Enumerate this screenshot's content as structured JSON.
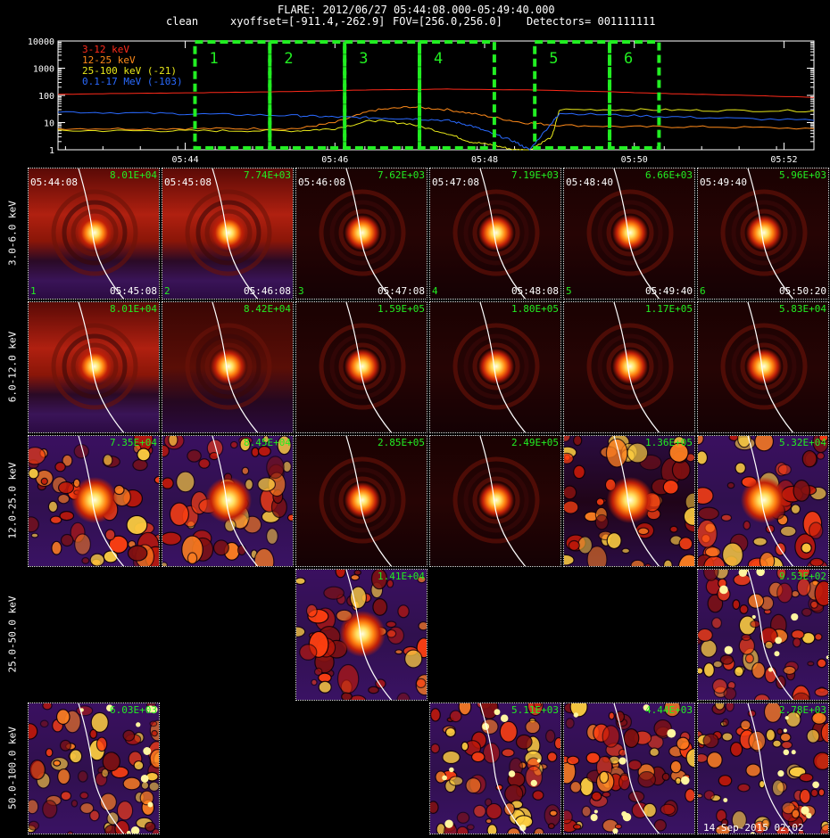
{
  "header": {
    "line1": "FLARE: 2012/06/27 05:44:08.000-05:49:40.000",
    "line2_method": "clean",
    "line2_offset": "xyoffset=[-911.4,-262.9]",
    "line2_fov": "FOV=[256.0,256.0]",
    "line2_detectors": "Detectors= 001111111"
  },
  "chart_data": {
    "type": "line",
    "y_scale": "log",
    "ylim": [
      1,
      10000
    ],
    "y_ticks": [
      "10000",
      "1000",
      "100",
      "10",
      "1"
    ],
    "x_ticks": [
      "05:44",
      "05:46",
      "05:48",
      "05:50",
      "05:52"
    ],
    "xlim_minutes": [
      42.3,
      52.4
    ],
    "legend_placement": "top-left",
    "series": [
      {
        "name": "3-12 keV",
        "color": "#ff2a1a",
        "x": [
          42.3,
          43.5,
          44.5,
          45.5,
          46.5,
          47.5,
          48.5,
          49.5,
          50.5,
          51.5,
          52.4
        ],
        "values": [
          110,
          120,
          128,
          140,
          160,
          170,
          160,
          140,
          115,
          100,
          85
        ]
      },
      {
        "name": "12-25 keV",
        "color": "#ff8a1a",
        "x": [
          42.3,
          43.5,
          44.5,
          45.5,
          46.0,
          46.5,
          47.0,
          47.5,
          48.0,
          48.5,
          49.0,
          50.0,
          51.0,
          52.4
        ],
        "values": [
          6,
          6,
          6,
          6,
          10,
          28,
          38,
          30,
          18,
          10,
          8,
          7,
          7,
          6
        ]
      },
      {
        "name": "25-100 keV (-21)",
        "color": "#e8e81a",
        "x": [
          42.3,
          43.5,
          44.5,
          45.5,
          46.0,
          46.5,
          47.0,
          47.5,
          47.8,
          48.1,
          48.4,
          48.6,
          48.9,
          49.0,
          50.0,
          51.0,
          52.4
        ],
        "values": [
          5,
          5,
          5,
          5,
          6,
          12,
          9,
          4,
          2,
          1.5,
          1,
          1,
          3,
          30,
          30,
          28,
          27
        ]
      },
      {
        "name": "0.1-17 MeV (-103)",
        "color": "#2a6aff",
        "x": [
          42.3,
          43.5,
          44.5,
          45.5,
          46.0,
          46.5,
          47.0,
          47.5,
          47.8,
          48.1,
          48.4,
          48.6,
          48.9,
          49.0,
          50.0,
          51.0,
          52.4
        ],
        "values": [
          25,
          22,
          20,
          18,
          16,
          15,
          14,
          12,
          8,
          4,
          2,
          1,
          10,
          22,
          18,
          15,
          12
        ]
      }
    ],
    "intervals": [
      {
        "label": "1",
        "start": 44.13,
        "end": 45.13
      },
      {
        "label": "2",
        "start": 45.13,
        "end": 46.13
      },
      {
        "label": "3",
        "start": 46.13,
        "end": 47.13
      },
      {
        "label": "4",
        "start": 47.13,
        "end": 48.13
      },
      {
        "label": "5",
        "start": 48.67,
        "end": 49.67
      },
      {
        "label": "6",
        "start": 49.67,
        "end": 50.33
      }
    ]
  },
  "rows": [
    {
      "label": "3.0-6.0 keV"
    },
    {
      "label": "6.0-12.0 keV"
    },
    {
      "label": "12.0-25.0 keV"
    },
    {
      "label": "25.0-50.0 keV"
    },
    {
      "label": "50.0-100.0 keV"
    }
  ],
  "panels": [
    {
      "row": 0,
      "col": 0,
      "max": "8.01E+04",
      "t_start": "05:44:08",
      "t_end": "05:45:08",
      "idx": "1",
      "type": "smooth",
      "bg": "band"
    },
    {
      "row": 0,
      "col": 1,
      "max": "7.74E+03",
      "t_start": "05:45:08",
      "t_end": "05:46:08",
      "idx": "2",
      "type": "smooth",
      "bg": "band"
    },
    {
      "row": 0,
      "col": 2,
      "max": "7.62E+03",
      "t_start": "05:46:08",
      "t_end": "05:47:08",
      "idx": "3",
      "type": "smooth",
      "bg": "dark"
    },
    {
      "row": 0,
      "col": 3,
      "max": "7.19E+03",
      "t_start": "05:47:08",
      "t_end": "05:48:08",
      "idx": "4",
      "type": "smooth",
      "bg": "dark"
    },
    {
      "row": 0,
      "col": 4,
      "max": "6.66E+03",
      "t_start": "05:48:40",
      "t_end": "05:49:40",
      "idx": "5",
      "type": "smooth",
      "bg": "dark"
    },
    {
      "row": 0,
      "col": 5,
      "max": "5.96E+03",
      "t_start": "05:49:40",
      "t_end": "05:50:20",
      "idx": "6",
      "type": "smooth",
      "bg": "dark"
    },
    {
      "row": 1,
      "col": 0,
      "max": "8.01E+04",
      "type": "smooth",
      "bg": "band"
    },
    {
      "row": 1,
      "col": 1,
      "max": "8.42E+04",
      "type": "smooth",
      "bg": "mid"
    },
    {
      "row": 1,
      "col": 2,
      "max": "1.59E+05",
      "type": "smooth",
      "bg": "dark"
    },
    {
      "row": 1,
      "col": 3,
      "max": "1.80E+05",
      "type": "smooth",
      "bg": "dark"
    },
    {
      "row": 1,
      "col": 4,
      "max": "1.17E+05",
      "type": "smooth",
      "bg": "dark"
    },
    {
      "row": 1,
      "col": 5,
      "max": "5.83E+04",
      "type": "smooth",
      "bg": "dark"
    },
    {
      "row": 2,
      "col": 0,
      "max": "7.35E+04",
      "type": "noisy",
      "bg": "noisy"
    },
    {
      "row": 2,
      "col": 1,
      "max": "8.45E+04",
      "type": "noisy",
      "bg": "noisy"
    },
    {
      "row": 2,
      "col": 2,
      "max": "2.85E+05",
      "type": "smooth",
      "bg": "dark"
    },
    {
      "row": 2,
      "col": 3,
      "max": "2.49E+05",
      "type": "smooth",
      "bg": "dark"
    },
    {
      "row": 2,
      "col": 4,
      "max": "1.36E+05",
      "type": "noisy",
      "bg": "half"
    },
    {
      "row": 2,
      "col": 5,
      "max": "5.32E+04",
      "type": "noisy",
      "bg": "noisy"
    },
    {
      "row": 3,
      "col": 2,
      "max": "1.41E+04",
      "type": "noisy",
      "bg": "noisy"
    },
    {
      "row": 3,
      "col": 5,
      "max": "9.53E+02",
      "type": "blobs",
      "bg": "noisy"
    },
    {
      "row": 4,
      "col": 0,
      "max": "6.03E+03",
      "type": "blobs",
      "bg": "noisy"
    },
    {
      "row": 4,
      "col": 3,
      "max": "5.11E+03",
      "type": "blobs",
      "bg": "noisy"
    },
    {
      "row": 4,
      "col": 4,
      "max": "4.44E+03",
      "type": "blobs",
      "bg": "noisy"
    },
    {
      "row": 4,
      "col": 5,
      "max": "2.78E+03",
      "type": "blobs",
      "bg": "noisy"
    }
  ],
  "footer": "14-Sep-2015 02:02",
  "colors": {
    "interval_box": "#22ee22",
    "max_label": "#22ee22",
    "limb": "#ffffff"
  }
}
